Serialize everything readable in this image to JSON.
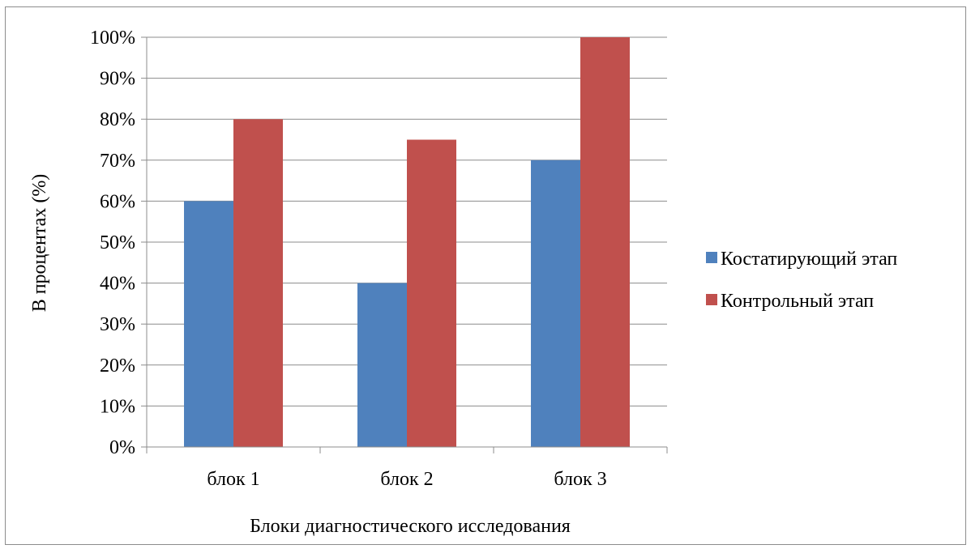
{
  "chart_data": {
    "type": "bar",
    "categories": [
      "блок 1",
      "блок 2",
      "блок 3"
    ],
    "series": [
      {
        "name": "Костатирующий этап",
        "values": [
          60,
          40,
          70
        ],
        "color": "#4F81BD"
      },
      {
        "name": "Контрольный этап",
        "values": [
          80,
          75,
          100
        ],
        "color": "#C0504D"
      }
    ],
    "title": "",
    "xlabel": "Блоки диагностического исследования",
    "ylabel": "В процентах (%)",
    "ylim": [
      0,
      100
    ],
    "yticks": [
      0,
      10,
      20,
      30,
      40,
      50,
      60,
      70,
      80,
      90,
      100
    ],
    "ytick_format": "percent",
    "grid": true,
    "legend_position": "right"
  }
}
